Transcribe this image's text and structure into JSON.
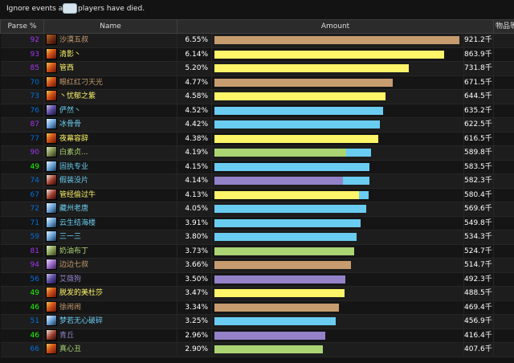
{
  "filter": {
    "before_text": "Ignore events after",
    "after_text": "players have died.",
    "deaths_value": ""
  },
  "columns": {
    "parse": "Parse %",
    "name": "Name",
    "amount": "Amount",
    "extra": "物品等级"
  },
  "class_colors": {
    "warrior": "#c79c6e",
    "rogue": "#fff569",
    "mage": "#69ccf0",
    "hunter": "#abd473",
    "warlock": "#9482c9"
  },
  "parse_colors": {
    "epic": "#a335ee",
    "rare": "#0070dd",
    "uncommon": "#1eff00"
  },
  "max_total": 921.2,
  "rows": [
    {
      "parse": "92",
      "tier": "epic",
      "name": "沙漠五叔",
      "icon": "demon-spec-icon",
      "class": "warrior",
      "percent": "6.55%",
      "total": "921.2千",
      "value": 921.2
    },
    {
      "parse": "93",
      "tier": "epic",
      "name": "清影丶",
      "icon": "fire-spec-icon",
      "class": "rogue",
      "percent": "6.14%",
      "total": "863.9千",
      "value": 863.9
    },
    {
      "parse": "85",
      "tier": "epic",
      "name": "管西",
      "icon": "fire-spec-icon",
      "class": "rogue",
      "percent": "5.20%",
      "total": "731.8千",
      "value": 731.8
    },
    {
      "parse": "70",
      "tier": "rare",
      "name": "眼红红刁天光",
      "icon": "fire-spec-icon",
      "class": "warrior",
      "percent": "4.77%",
      "total": "671.5千",
      "value": 671.5
    },
    {
      "parse": "73",
      "tier": "rare",
      "name": "丶忧郁之紫",
      "icon": "fire-spec-icon",
      "class": "rogue",
      "percent": "4.58%",
      "total": "644.5千",
      "value": 644.5
    },
    {
      "parse": "76",
      "tier": "rare",
      "name": "俨然丶",
      "icon": "shadow-spec-icon",
      "class": "mage",
      "percent": "4.52%",
      "total": "635.2千",
      "value": 635.2
    },
    {
      "parse": "87",
      "tier": "epic",
      "name": "冰骨骨",
      "icon": "frost-spec-icon",
      "class": "mage",
      "percent": "4.42%",
      "total": "622.5千",
      "value": 622.5
    },
    {
      "parse": "77",
      "tier": "rare",
      "name": "夜幕容辞",
      "icon": "fire-spec-icon",
      "class": "rogue",
      "percent": "4.38%",
      "total": "616.5千",
      "value": 616.5
    },
    {
      "parse": "90",
      "tier": "epic",
      "name": "白素贞...",
      "icon": "hunter-spec-icon",
      "class": "hunter",
      "percent": "4.19%",
      "total": "589.8千",
      "value": 589.8,
      "split": [
        0.84,
        0.16
      ],
      "split_classes": [
        "hunter",
        "mage"
      ]
    },
    {
      "parse": "49",
      "tier": "uncommon",
      "name": "固执专业",
      "icon": "frost-spec-icon",
      "class": "mage",
      "percent": "4.15%",
      "total": "583.5千",
      "value": 583.5
    },
    {
      "parse": "74",
      "tier": "rare",
      "name": "假装没片",
      "icon": "bleed-spec-icon",
      "class": "mage",
      "percent": "4.14%",
      "total": "582.3千",
      "value": 582.3,
      "split": [
        0.83,
        0.17
      ],
      "split_classes": [
        "warlock",
        "mage"
      ]
    },
    {
      "parse": "67",
      "tier": "rare",
      "name": "管经偷过牛",
      "icon": "bleed-spec-icon",
      "class": "rogue",
      "percent": "4.13%",
      "total": "580.4千",
      "value": 580.4,
      "split": [
        0.94,
        0.06
      ],
      "split_classes": [
        "rogue",
        "mage"
      ]
    },
    {
      "parse": "72",
      "tier": "rare",
      "name": "藏州老唐",
      "icon": "frost-spec-icon",
      "class": "mage",
      "percent": "4.05%",
      "total": "569.6千",
      "value": 569.6
    },
    {
      "parse": "71",
      "tier": "rare",
      "name": "云生结海楼",
      "icon": "frost-spec-icon",
      "class": "mage",
      "percent": "3.91%",
      "total": "549.8千",
      "value": 549.8
    },
    {
      "parse": "59",
      "tier": "rare",
      "name": "三一三",
      "icon": "frost-spec-icon",
      "class": "mage",
      "percent": "3.80%",
      "total": "534.3千",
      "value": 534.3
    },
    {
      "parse": "81",
      "tier": "epic",
      "name": "奶油布丁",
      "icon": "nature-spec-icon",
      "class": "hunter",
      "percent": "3.73%",
      "total": "524.7千",
      "value": 524.7
    },
    {
      "parse": "94",
      "tier": "epic",
      "name": "边边七叔",
      "icon": "arcane-spec-icon",
      "class": "warrior",
      "percent": "3.66%",
      "total": "514.7千",
      "value": 514.7
    },
    {
      "parse": "56",
      "tier": "rare",
      "name": "艾薇狗",
      "icon": "shadow-spec-icon",
      "class": "warlock",
      "percent": "3.50%",
      "total": "492.3千",
      "value": 492.3
    },
    {
      "parse": "49",
      "tier": "uncommon",
      "name": "脱发的美杜莎",
      "icon": "fire-spec-icon",
      "class": "rogue",
      "percent": "3.47%",
      "total": "488.5千",
      "value": 488.5
    },
    {
      "parse": "46",
      "tier": "uncommon",
      "name": "徐闹闹",
      "icon": "fire-spec-icon",
      "class": "warrior",
      "percent": "3.34%",
      "total": "469.4千",
      "value": 469.4
    },
    {
      "parse": "51",
      "tier": "rare",
      "name": "梦若无心破碎",
      "icon": "frost-spec-icon",
      "class": "mage",
      "percent": "3.25%",
      "total": "456.9千",
      "value": 456.9
    },
    {
      "parse": "46",
      "tier": "uncommon",
      "name": "青丘",
      "icon": "bleed-spec-icon",
      "class": "warlock",
      "percent": "2.96%",
      "total": "416.4千",
      "value": 416.4
    },
    {
      "parse": "66",
      "tier": "rare",
      "name": "真心丑",
      "icon": "fire-spec-icon",
      "class": "hunter",
      "percent": "2.90%",
      "total": "407.6千",
      "value": 407.6
    }
  ]
}
